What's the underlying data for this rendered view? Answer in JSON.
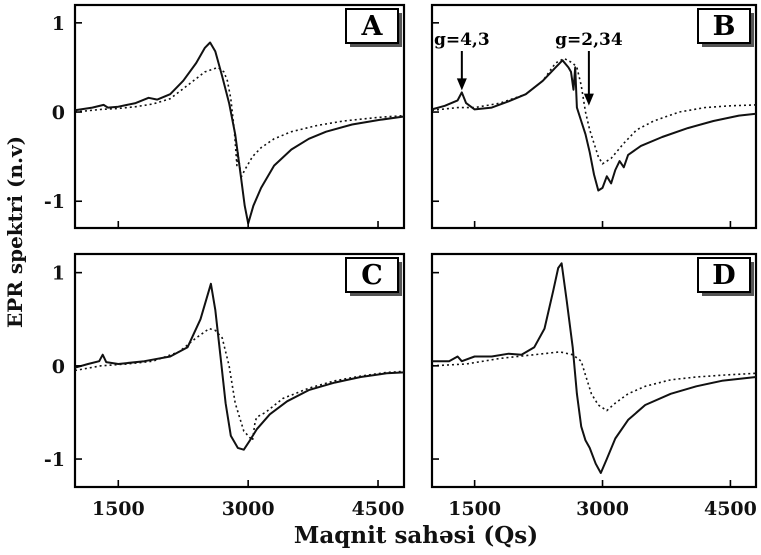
{
  "ylabel": "EPR spektri (n.v)",
  "xlabel": "Maqnit sahəsi (Qs)",
  "xticks": [
    "1500",
    "3000",
    "4500"
  ],
  "yticks": [
    "1",
    "0",
    "-1"
  ],
  "chart_data": [
    {
      "type": "line",
      "panel": "A",
      "xlim": [
        1000,
        4800
      ],
      "ylim": [
        -1.3,
        1.2
      ],
      "series": [
        {
          "style": "solid",
          "points": [
            [
              1000,
              0.02
            ],
            [
              1200,
              0.05
            ],
            [
              1330,
              0.08
            ],
            [
              1380,
              0.05
            ],
            [
              1500,
              0.06
            ],
            [
              1700,
              0.1
            ],
            [
              1850,
              0.16
            ],
            [
              1950,
              0.14
            ],
            [
              2100,
              0.2
            ],
            [
              2250,
              0.35
            ],
            [
              2400,
              0.55
            ],
            [
              2500,
              0.72
            ],
            [
              2560,
              0.78
            ],
            [
              2620,
              0.68
            ],
            [
              2700,
              0.4
            ],
            [
              2780,
              0.1
            ],
            [
              2850,
              -0.25
            ],
            [
              2920,
              -0.75
            ],
            [
              2960,
              -1.05
            ],
            [
              3000,
              -1.25
            ],
            [
              3060,
              -1.05
            ],
            [
              3150,
              -0.85
            ],
            [
              3300,
              -0.6
            ],
            [
              3500,
              -0.42
            ],
            [
              3700,
              -0.3
            ],
            [
              3900,
              -0.22
            ],
            [
              4200,
              -0.14
            ],
            [
              4500,
              -0.09
            ],
            [
              4800,
              -0.05
            ]
          ]
        },
        {
          "style": "dotted",
          "points": [
            [
              1000,
              0.0
            ],
            [
              1300,
              0.03
            ],
            [
              1500,
              0.04
            ],
            [
              1700,
              0.06
            ],
            [
              1900,
              0.09
            ],
            [
              2100,
              0.15
            ],
            [
              2300,
              0.3
            ],
            [
              2500,
              0.45
            ],
            [
              2650,
              0.5
            ],
            [
              2720,
              0.45
            ],
            [
              2760,
              0.35
            ],
            [
              2800,
              0.15
            ],
            [
              2840,
              -0.2
            ],
            [
              2870,
              -0.6
            ],
            [
              2880,
              -0.45
            ],
            [
              2920,
              -0.73
            ],
            [
              2960,
              -0.65
            ],
            [
              3050,
              -0.5
            ],
            [
              3150,
              -0.4
            ],
            [
              3300,
              -0.3
            ],
            [
              3500,
              -0.22
            ],
            [
              3800,
              -0.15
            ],
            [
              4100,
              -0.1
            ],
            [
              4500,
              -0.06
            ],
            [
              4800,
              -0.04
            ]
          ]
        }
      ]
    },
    {
      "type": "line",
      "panel": "B",
      "xlim": [
        1000,
        4800
      ],
      "ylim": [
        -1.3,
        1.2
      ],
      "annotations": [
        {
          "text": "g=4,3",
          "x": 1350,
          "y": 0.22
        },
        {
          "text": "g=2,34",
          "x": 2840,
          "y": 0.05
        }
      ],
      "series": [
        {
          "style": "solid",
          "points": [
            [
              1000,
              0.03
            ],
            [
              1150,
              0.07
            ],
            [
              1300,
              0.13
            ],
            [
              1350,
              0.22
            ],
            [
              1400,
              0.1
            ],
            [
              1500,
              0.03
            ],
            [
              1700,
              0.05
            ],
            [
              1900,
              0.12
            ],
            [
              2100,
              0.2
            ],
            [
              2300,
              0.35
            ],
            [
              2450,
              0.5
            ],
            [
              2530,
              0.58
            ],
            [
              2600,
              0.5
            ],
            [
              2630,
              0.45
            ],
            [
              2660,
              0.25
            ],
            [
              2680,
              0.5
            ],
            [
              2700,
              0.05
            ],
            [
              2750,
              -0.1
            ],
            [
              2800,
              -0.25
            ],
            [
              2850,
              -0.45
            ],
            [
              2900,
              -0.7
            ],
            [
              2950,
              -0.88
            ],
            [
              3000,
              -0.85
            ],
            [
              3050,
              -0.72
            ],
            [
              3100,
              -0.8
            ],
            [
              3150,
              -0.65
            ],
            [
              3200,
              -0.55
            ],
            [
              3250,
              -0.62
            ],
            [
              3300,
              -0.48
            ],
            [
              3450,
              -0.38
            ],
            [
              3700,
              -0.28
            ],
            [
              4000,
              -0.18
            ],
            [
              4300,
              -0.1
            ],
            [
              4600,
              -0.04
            ],
            [
              4800,
              -0.02
            ]
          ]
        },
        {
          "style": "dotted",
          "points": [
            [
              1000,
              0.02
            ],
            [
              1300,
              0.05
            ],
            [
              1500,
              0.05
            ],
            [
              1800,
              0.1
            ],
            [
              2100,
              0.2
            ],
            [
              2300,
              0.35
            ],
            [
              2450,
              0.55
            ],
            [
              2550,
              0.6
            ],
            [
              2650,
              0.55
            ],
            [
              2700,
              0.5
            ],
            [
              2750,
              0.3
            ],
            [
              2800,
              0.0
            ],
            [
              2850,
              -0.2
            ],
            [
              2900,
              -0.35
            ],
            [
              2950,
              -0.5
            ],
            [
              3000,
              -0.58
            ],
            [
              3100,
              -0.52
            ],
            [
              3250,
              -0.35
            ],
            [
              3400,
              -0.2
            ],
            [
              3600,
              -0.1
            ],
            [
              3900,
              0.0
            ],
            [
              4200,
              0.05
            ],
            [
              4500,
              0.07
            ],
            [
              4800,
              0.08
            ]
          ]
        }
      ]
    },
    {
      "type": "line",
      "panel": "C",
      "xlim": [
        1000,
        4800
      ],
      "ylim": [
        -1.3,
        1.2
      ],
      "series": [
        {
          "style": "solid",
          "points": [
            [
              1000,
              -0.02
            ],
            [
              1150,
              0.02
            ],
            [
              1280,
              0.05
            ],
            [
              1320,
              0.12
            ],
            [
              1360,
              0.04
            ],
            [
              1500,
              0.02
            ],
            [
              1800,
              0.05
            ],
            [
              2100,
              0.1
            ],
            [
              2300,
              0.2
            ],
            [
              2450,
              0.5
            ],
            [
              2570,
              0.88
            ],
            [
              2620,
              0.6
            ],
            [
              2680,
              0.1
            ],
            [
              2740,
              -0.4
            ],
            [
              2800,
              -0.75
            ],
            [
              2880,
              -0.88
            ],
            [
              2950,
              -0.9
            ],
            [
              3020,
              -0.8
            ],
            [
              3100,
              -0.68
            ],
            [
              3250,
              -0.52
            ],
            [
              3450,
              -0.38
            ],
            [
              3700,
              -0.26
            ],
            [
              4000,
              -0.18
            ],
            [
              4300,
              -0.12
            ],
            [
              4600,
              -0.08
            ],
            [
              4800,
              -0.07
            ]
          ]
        },
        {
          "style": "dotted",
          "points": [
            [
              1000,
              -0.05
            ],
            [
              1300,
              0.0
            ],
            [
              1600,
              0.02
            ],
            [
              1900,
              0.05
            ],
            [
              2200,
              0.15
            ],
            [
              2400,
              0.3
            ],
            [
              2550,
              0.4
            ],
            [
              2620,
              0.38
            ],
            [
              2700,
              0.3
            ],
            [
              2780,
              0.0
            ],
            [
              2850,
              -0.4
            ],
            [
              2950,
              -0.7
            ],
            [
              3050,
              -0.8
            ],
            [
              3080,
              -0.6
            ],
            [
              3100,
              -0.55
            ],
            [
              3200,
              -0.5
            ],
            [
              3400,
              -0.35
            ],
            [
              3700,
              -0.24
            ],
            [
              4000,
              -0.16
            ],
            [
              4300,
              -0.11
            ],
            [
              4600,
              -0.07
            ],
            [
              4800,
              -0.06
            ]
          ]
        }
      ]
    },
    {
      "type": "line",
      "panel": "D",
      "xlim": [
        1000,
        4800
      ],
      "ylim": [
        -1.3,
        1.2
      ],
      "series": [
        {
          "style": "solid",
          "points": [
            [
              1000,
              0.05
            ],
            [
              1200,
              0.05
            ],
            [
              1300,
              0.1
            ],
            [
              1350,
              0.05
            ],
            [
              1500,
              0.1
            ],
            [
              1700,
              0.1
            ],
            [
              1900,
              0.13
            ],
            [
              2050,
              0.12
            ],
            [
              2200,
              0.2
            ],
            [
              2320,
              0.4
            ],
            [
              2420,
              0.8
            ],
            [
              2480,
              1.05
            ],
            [
              2520,
              1.1
            ],
            [
              2580,
              0.7
            ],
            [
              2650,
              0.2
            ],
            [
              2700,
              -0.3
            ],
            [
              2750,
              -0.65
            ],
            [
              2800,
              -0.8
            ],
            [
              2850,
              -0.88
            ],
            [
              2920,
              -1.05
            ],
            [
              2980,
              -1.15
            ],
            [
              3050,
              -1.0
            ],
            [
              3150,
              -0.78
            ],
            [
              3300,
              -0.58
            ],
            [
              3500,
              -0.42
            ],
            [
              3800,
              -0.3
            ],
            [
              4100,
              -0.22
            ],
            [
              4400,
              -0.16
            ],
            [
              4800,
              -0.12
            ]
          ]
        },
        {
          "style": "dotted",
          "points": [
            [
              1000,
              0.0
            ],
            [
              1400,
              0.02
            ],
            [
              1800,
              0.08
            ],
            [
              2200,
              0.12
            ],
            [
              2500,
              0.15
            ],
            [
              2650,
              0.12
            ],
            [
              2750,
              0.05
            ],
            [
              2800,
              -0.1
            ],
            [
              2870,
              -0.3
            ],
            [
              2950,
              -0.42
            ],
            [
              3050,
              -0.48
            ],
            [
              3150,
              -0.4
            ],
            [
              3300,
              -0.3
            ],
            [
              3500,
              -0.22
            ],
            [
              3800,
              -0.15
            ],
            [
              4100,
              -0.12
            ],
            [
              4400,
              -0.1
            ],
            [
              4800,
              -0.08
            ]
          ]
        }
      ]
    }
  ]
}
